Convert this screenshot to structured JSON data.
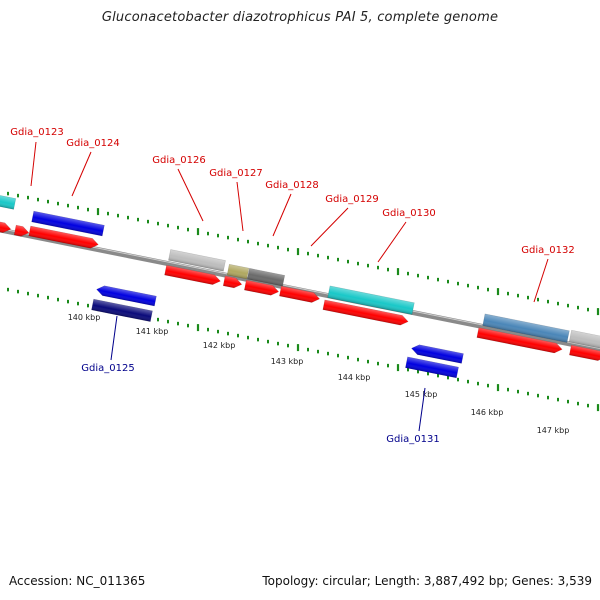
{
  "title": "Gluconacetobacter diazotrophicus PAI 5, complete genome",
  "accession_text": "Accession: NC_011365",
  "summary_text": "Topology: circular; Length: 3,887,492 bp; Genes: 3,539",
  "colors": {
    "forward_label": "#d40000",
    "reverse_label": "#00008b",
    "tick": "#1a8a1a",
    "backbone": "#8a8a8a",
    "cds": "#ff0000",
    "blue": "#0000e0",
    "cyan": "#19c8c8",
    "steel": "#4a86b8",
    "gray": "#bdbdbd",
    "olive": "#b0a860",
    "darkgray": "#6a6a6a",
    "navy": "#0a0a7a"
  },
  "scale": {
    "labels": [
      "140 kbp",
      "141 kbp",
      "142 kbp",
      "143 kbp",
      "144 kbp",
      "145 kbp",
      "146 kbp",
      "147 kbp"
    ]
  },
  "genes": [
    {
      "locus": "Gdia_0123",
      "strand": "+"
    },
    {
      "locus": "Gdia_0124",
      "strand": "+"
    },
    {
      "locus": "Gdia_0125",
      "strand": "-"
    },
    {
      "locus": "Gdia_0126",
      "strand": "+"
    },
    {
      "locus": "Gdia_0127",
      "strand": "+"
    },
    {
      "locus": "Gdia_0128",
      "strand": "+"
    },
    {
      "locus": "Gdia_0129",
      "strand": "+"
    },
    {
      "locus": "Gdia_0130",
      "strand": "+"
    },
    {
      "locus": "Gdia_0131",
      "strand": "-"
    },
    {
      "locus": "Gdia_0132",
      "strand": "+"
    }
  ]
}
